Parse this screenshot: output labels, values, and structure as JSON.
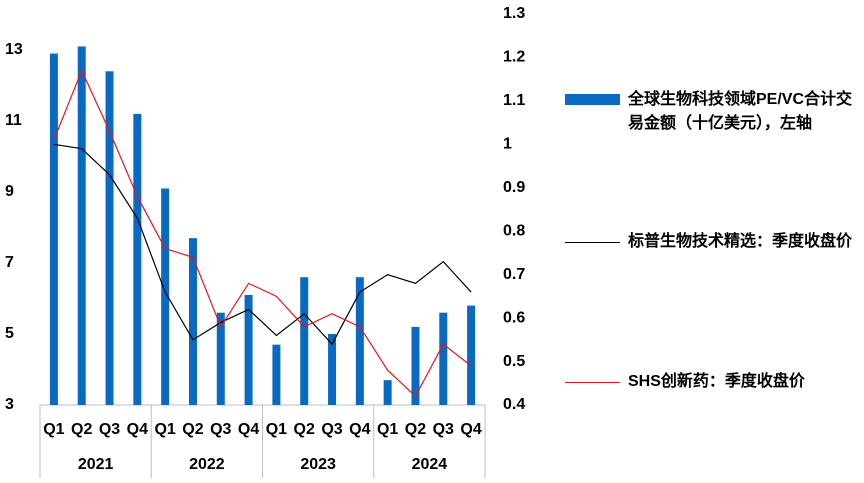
{
  "chart_data": {
    "type": "bar_line_combo",
    "categories": [
      "Q1",
      "Q2",
      "Q3",
      "Q4",
      "Q1",
      "Q2",
      "Q3",
      "Q4",
      "Q1",
      "Q2",
      "Q3",
      "Q4",
      "Q1",
      "Q2",
      "Q3",
      "Q4"
    ],
    "years": [
      "2021",
      "2022",
      "2023",
      "2024"
    ],
    "series": [
      {
        "name": "全球生物科技领域PE/VC合计交易金额（十亿美元），左轴",
        "type": "bar",
        "color": "#0a6ac1",
        "values": [
          12.9,
          13.1,
          12.4,
          11.2,
          9.1,
          7.7,
          5.6,
          6.1,
          4.7,
          6.6,
          5.0,
          6.6,
          3.7,
          5.2,
          5.6,
          5.8
        ]
      },
      {
        "name": "标普生物技术精选：季度收盘价",
        "type": "line",
        "axis": "y2",
        "color": "#000000",
        "values": [
          1.0,
          0.99,
          0.93,
          0.83,
          0.66,
          0.55,
          0.59,
          0.62,
          0.56,
          0.61,
          0.54,
          0.66,
          0.7,
          0.68,
          0.73,
          0.66
        ]
      },
      {
        "name": "SHS创新药：季度收盘价",
        "type": "line",
        "axis": "y2",
        "color": "#e8141c",
        "values": [
          1.01,
          1.17,
          1.03,
          0.88,
          0.76,
          0.74,
          0.58,
          0.68,
          0.65,
          0.58,
          0.61,
          0.58,
          0.48,
          0.42,
          0.54,
          0.49
        ]
      }
    ],
    "ylim": [
      3,
      13
    ],
    "yticks": [
      3,
      5,
      7,
      9,
      11,
      13
    ],
    "y2lim": [
      0.4,
      1.3
    ],
    "y2ticks": [
      0.4,
      0.5,
      0.6,
      0.7,
      0.8,
      0.9,
      1,
      1.1,
      1.2,
      1.3
    ]
  }
}
